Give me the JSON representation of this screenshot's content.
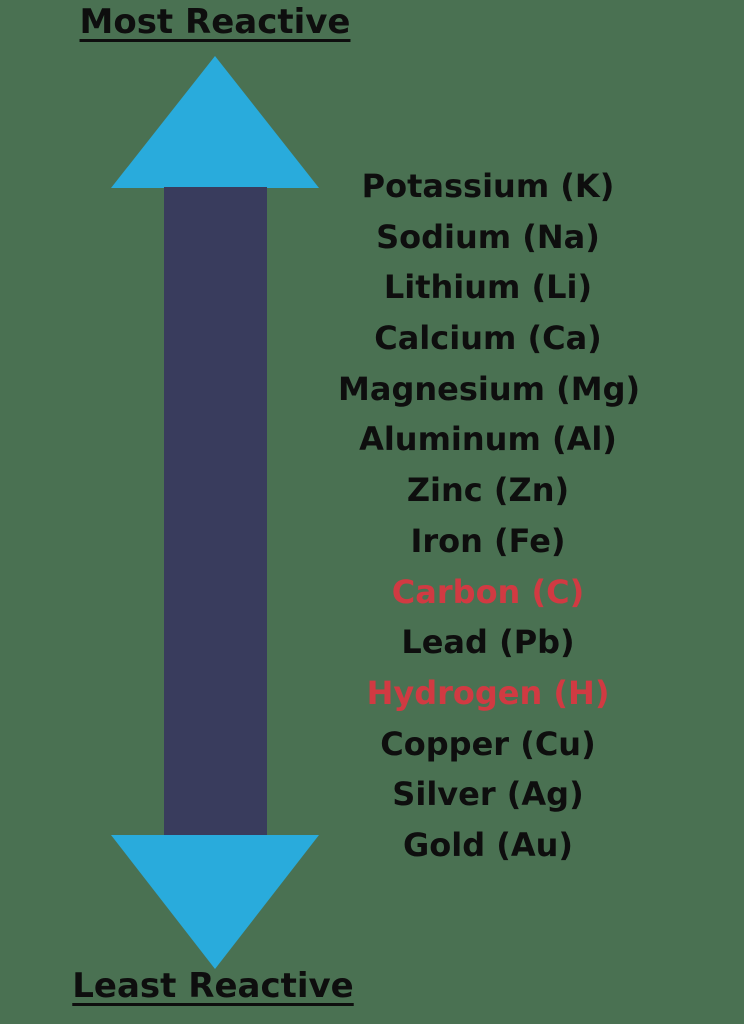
{
  "title_top": "Most Reactive",
  "title_bottom": "Least Reactive",
  "arrow": {
    "direction": "double-headed-vertical",
    "head_color": "#29ABDC",
    "shaft_color": "#393C5D"
  },
  "colors": {
    "background": "#4A7152",
    "arrow_head": "#29ABDC",
    "arrow_shaft": "#393C5D",
    "text": "#0E0E0E",
    "highlight": "#D13A42"
  },
  "list": {
    "items": [
      {
        "label": "Potassium (K)",
        "highlight": false
      },
      {
        "label": "Sodium (Na)",
        "highlight": false
      },
      {
        "label": "Lithium (Li)",
        "highlight": false
      },
      {
        "label": "Calcium (Ca)",
        "highlight": false
      },
      {
        "label": "Magnesium (Mg)",
        "highlight": false
      },
      {
        "label": "Aluminum (Al)",
        "highlight": false
      },
      {
        "label": "Zinc (Zn)",
        "highlight": false
      },
      {
        "label": "Iron (Fe)",
        "highlight": false
      },
      {
        "label": "Carbon (C)",
        "highlight": true
      },
      {
        "label": "Lead (Pb)",
        "highlight": false
      },
      {
        "label": "Hydrogen (H)",
        "highlight": true
      },
      {
        "label": "Copper (Cu)",
        "highlight": false
      },
      {
        "label": "Silver (Ag)",
        "highlight": false
      },
      {
        "label": "Gold (Au)",
        "highlight": false
      }
    ]
  }
}
